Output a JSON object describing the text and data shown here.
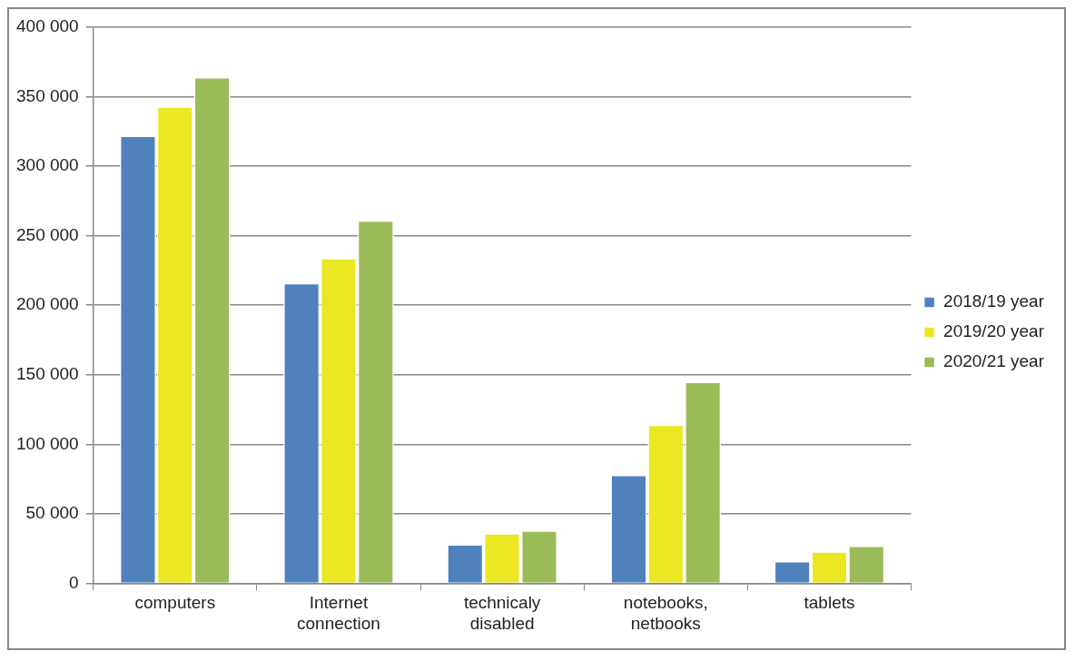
{
  "chart_data": {
    "type": "bar",
    "categories": [
      "computers",
      "Internet connection",
      "technicaly disabled",
      "notebooks, netbooks",
      "tablets"
    ],
    "series": [
      {
        "name": "2018/19 year",
        "color": "#4f81bd",
        "values": [
          322000,
          216000,
          28000,
          78000,
          16000
        ]
      },
      {
        "name": "2019/20 year",
        "color": "#ebe723",
        "values": [
          343000,
          234000,
          36000,
          114000,
          23000
        ]
      },
      {
        "name": "2020/21 year",
        "color": "#9bbb59",
        "values": [
          364000,
          261000,
          38000,
          145000,
          27000
        ]
      }
    ],
    "ylim": [
      0,
      400000
    ],
    "yticks": [
      {
        "value": 0,
        "label": "0"
      },
      {
        "value": 50000,
        "label": "50 000"
      },
      {
        "value": 100000,
        "label": "100 000"
      },
      {
        "value": 150000,
        "label": "150 000"
      },
      {
        "value": 200000,
        "label": "200 000"
      },
      {
        "value": 250000,
        "label": "250 000"
      },
      {
        "value": 300000,
        "label": "300 000"
      },
      {
        "value": 350000,
        "label": "350 000"
      },
      {
        "value": 400000,
        "label": "400 000"
      }
    ],
    "grid": "y",
    "legend": "right"
  }
}
